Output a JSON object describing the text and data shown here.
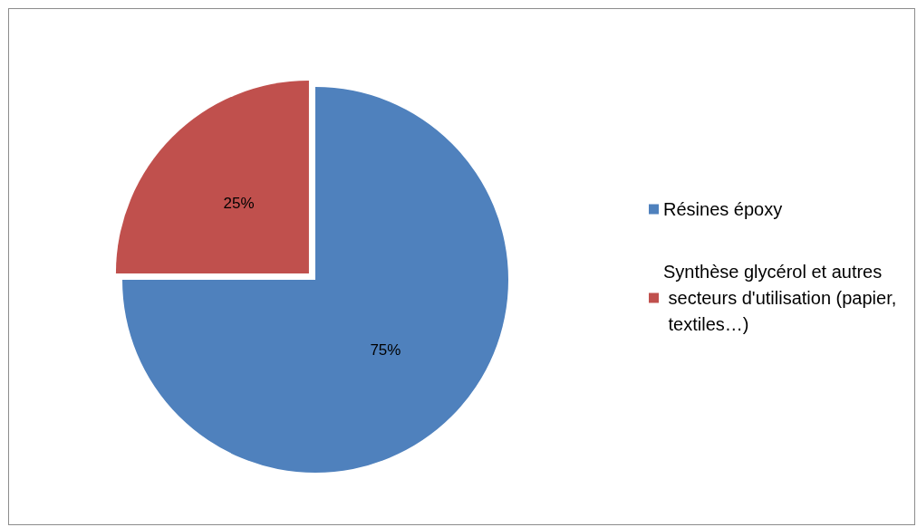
{
  "chart_data": {
    "type": "pie",
    "categories": [
      "Résines époxy",
      "Synthèse glycérol et autres secteurs d'utilisation (papier, textiles…)"
    ],
    "values": [
      75,
      25
    ],
    "colors": [
      "#4f81bd",
      "#c0504d"
    ],
    "value_labels": [
      "75%",
      "25%"
    ],
    "legend": "right"
  }
}
